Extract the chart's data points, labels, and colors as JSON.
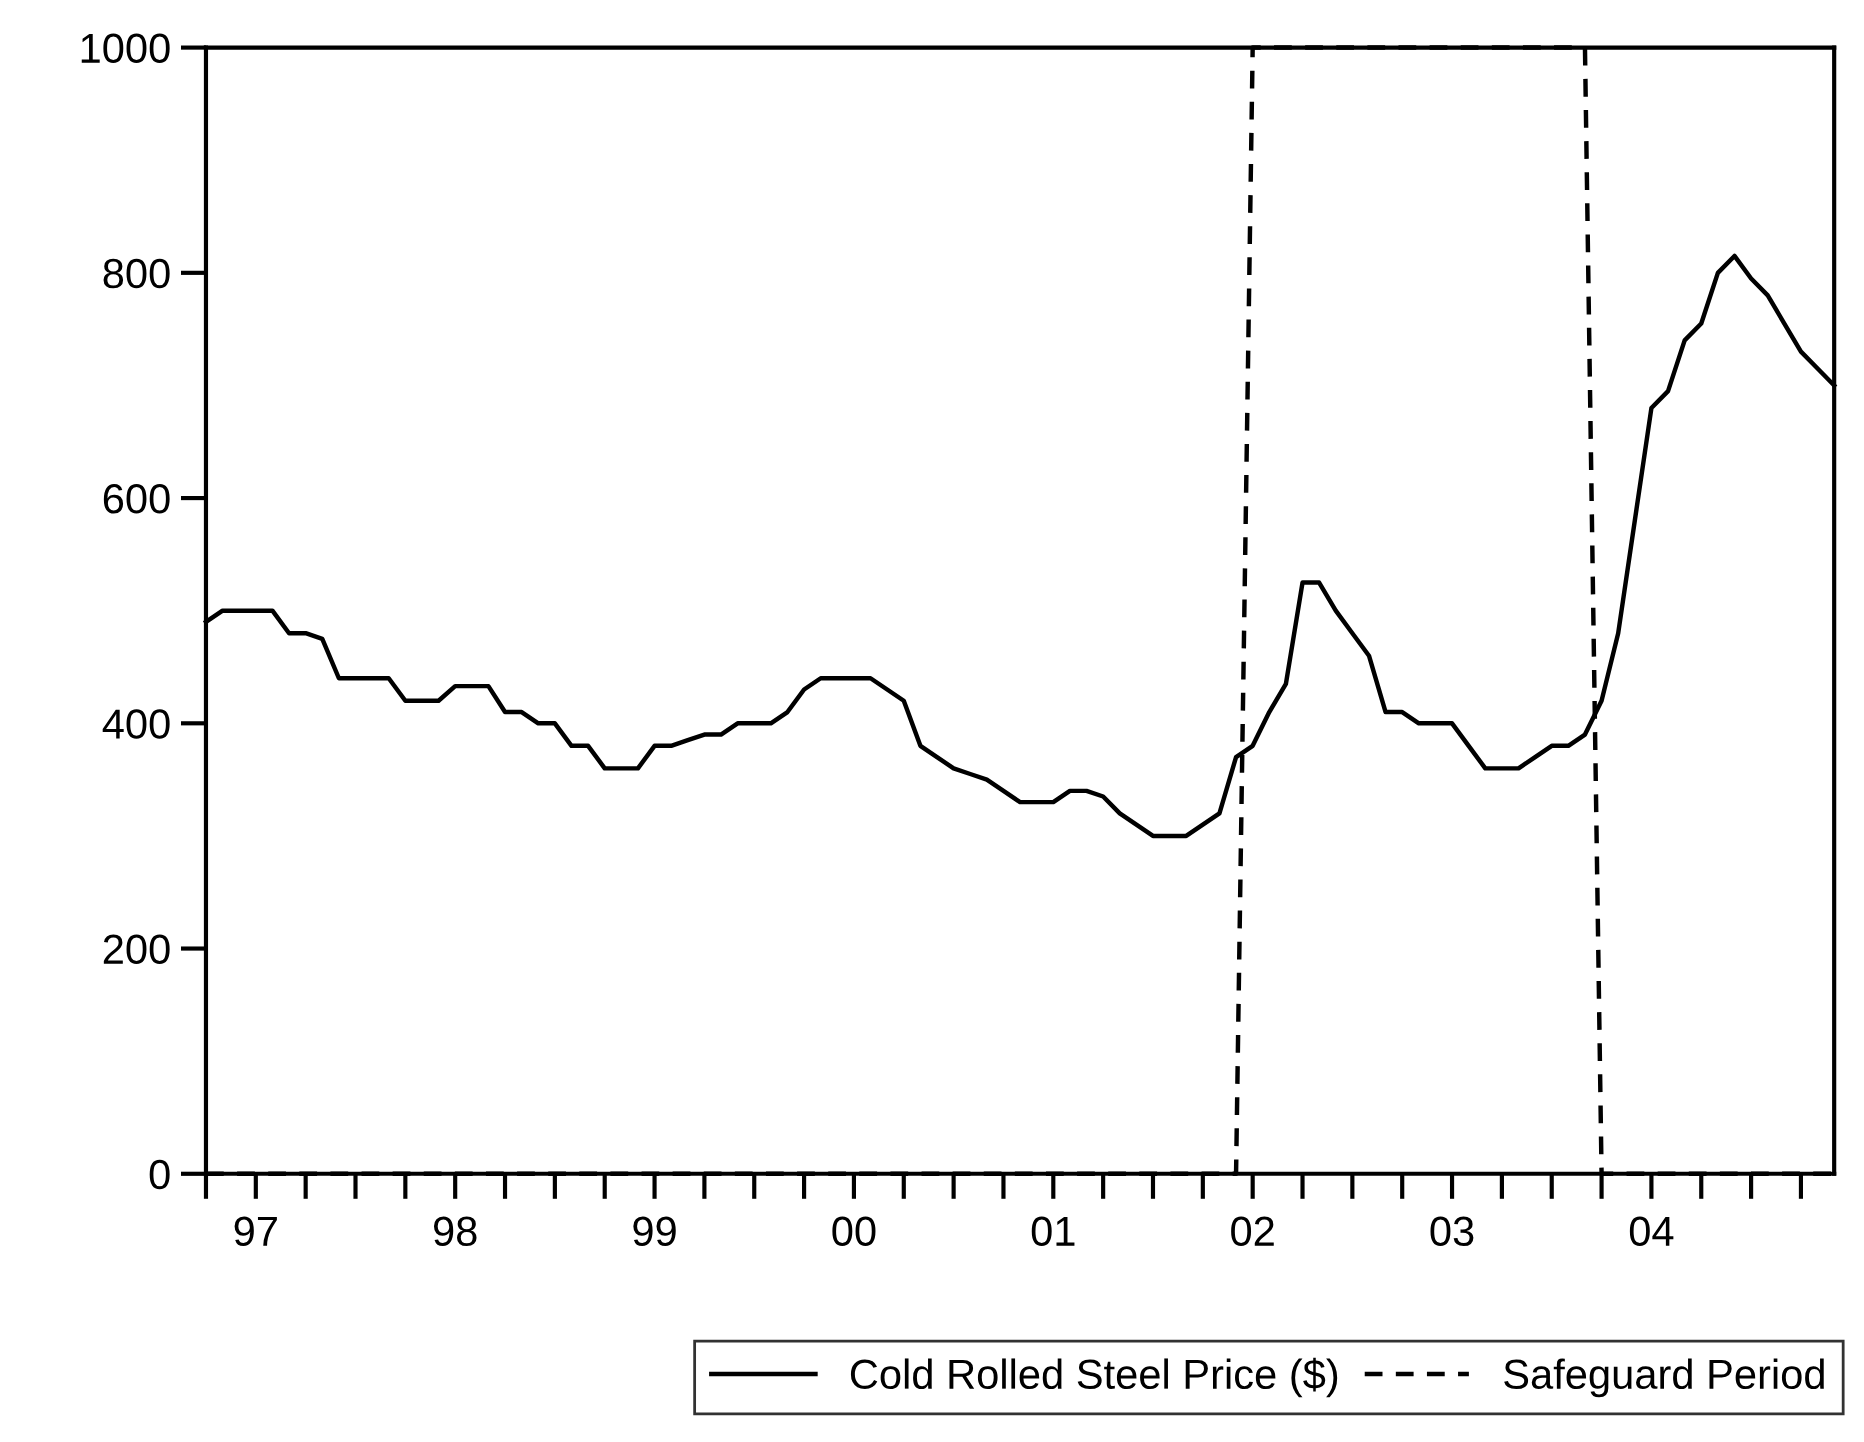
{
  "chart_data": {
    "type": "line",
    "x": [
      "1996-10",
      "1996-11",
      "1996-12",
      "1997-01",
      "1997-02",
      "1997-03",
      "1997-04",
      "1997-05",
      "1997-06",
      "1997-07",
      "1997-08",
      "1997-09",
      "1997-10",
      "1997-11",
      "1997-12",
      "1998-01",
      "1998-02",
      "1998-03",
      "1998-04",
      "1998-05",
      "1998-06",
      "1998-07",
      "1998-08",
      "1998-09",
      "1998-10",
      "1998-11",
      "1998-12",
      "1999-01",
      "1999-02",
      "1999-03",
      "1999-04",
      "1999-05",
      "1999-06",
      "1999-07",
      "1999-08",
      "1999-09",
      "1999-10",
      "1999-11",
      "1999-12",
      "2000-01",
      "2000-02",
      "2000-03",
      "2000-04",
      "2000-05",
      "2000-06",
      "2000-07",
      "2000-08",
      "2000-09",
      "2000-10",
      "2000-11",
      "2000-12",
      "2001-01",
      "2001-02",
      "2001-03",
      "2001-04",
      "2001-05",
      "2001-06",
      "2001-07",
      "2001-08",
      "2001-09",
      "2001-10",
      "2001-11",
      "2001-12",
      "2002-01",
      "2002-02",
      "2002-03",
      "2002-04",
      "2002-05",
      "2002-06",
      "2002-07",
      "2002-08",
      "2002-09",
      "2002-10",
      "2002-11",
      "2002-12",
      "2003-01",
      "2003-02",
      "2003-03",
      "2003-04",
      "2003-05",
      "2003-06",
      "2003-07",
      "2003-08",
      "2003-09",
      "2003-10",
      "2003-11",
      "2003-12",
      "2004-01",
      "2004-02",
      "2004-03",
      "2004-04",
      "2004-05",
      "2004-06",
      "2004-07",
      "2004-08",
      "2004-09",
      "2004-10",
      "2004-11",
      "2004-12"
    ],
    "series": [
      {
        "name": "Cold Rolled Steel Price ($)",
        "color": "#000000",
        "line_style": "solid",
        "values": [
          490,
          500,
          500,
          500,
          500,
          480,
          480,
          475,
          440,
          440,
          440,
          440,
          420,
          420,
          420,
          433,
          433,
          433,
          410,
          410,
          400,
          400,
          380,
          380,
          360,
          360,
          360,
          380,
          380,
          385,
          390,
          390,
          400,
          400,
          400,
          410,
          430,
          440,
          440,
          440,
          440,
          430,
          420,
          380,
          370,
          360,
          355,
          350,
          340,
          330,
          330,
          330,
          340,
          340,
          335,
          320,
          310,
          300,
          300,
          300,
          310,
          320,
          370,
          380,
          410,
          435,
          525,
          525,
          500,
          480,
          460,
          410,
          410,
          400,
          400,
          400,
          380,
          360,
          360,
          360,
          370,
          380,
          380,
          390,
          420,
          480,
          580,
          680,
          695,
          740,
          755,
          800,
          815,
          795,
          780,
          755,
          730,
          715,
          700
        ]
      },
      {
        "name": "Safeguard Period",
        "color": "#000000",
        "line_style": "dashed",
        "values": [
          0,
          0,
          0,
          0,
          0,
          0,
          0,
          0,
          0,
          0,
          0,
          0,
          0,
          0,
          0,
          0,
          0,
          0,
          0,
          0,
          0,
          0,
          0,
          0,
          0,
          0,
          0,
          0,
          0,
          0,
          0,
          0,
          0,
          0,
          0,
          0,
          0,
          0,
          0,
          0,
          0,
          0,
          0,
          0,
          0,
          0,
          0,
          0,
          0,
          0,
          0,
          0,
          0,
          0,
          0,
          0,
          0,
          0,
          0,
          0,
          0,
          0,
          0,
          1000,
          1000,
          1000,
          1000,
          1000,
          1000,
          1000,
          1000,
          1000,
          1000,
          1000,
          1000,
          1000,
          1000,
          1000,
          1000,
          1000,
          1000,
          1000,
          1000,
          1000,
          0,
          0,
          0,
          0,
          0,
          0,
          0,
          0,
          0,
          0,
          0,
          0,
          0,
          0,
          0
        ]
      }
    ],
    "xlim": [
      "1996-10",
      "2004-12"
    ],
    "xticks": [
      {
        "value": "1996-10",
        "label": null
      },
      {
        "value": "1997-01",
        "label": "97"
      },
      {
        "value": "1997-04",
        "label": null
      },
      {
        "value": "1997-07",
        "label": null
      },
      {
        "value": "1997-10",
        "label": null
      },
      {
        "value": "1998-01",
        "label": "98"
      },
      {
        "value": "1998-04",
        "label": null
      },
      {
        "value": "1998-07",
        "label": null
      },
      {
        "value": "1998-10",
        "label": null
      },
      {
        "value": "1999-01",
        "label": "99"
      },
      {
        "value": "1999-04",
        "label": null
      },
      {
        "value": "1999-07",
        "label": null
      },
      {
        "value": "1999-10",
        "label": null
      },
      {
        "value": "2000-01",
        "label": "00"
      },
      {
        "value": "2000-04",
        "label": null
      },
      {
        "value": "2000-07",
        "label": null
      },
      {
        "value": "2000-10",
        "label": null
      },
      {
        "value": "2001-01",
        "label": "01"
      },
      {
        "value": "2001-04",
        "label": null
      },
      {
        "value": "2001-07",
        "label": null
      },
      {
        "value": "2001-10",
        "label": null
      },
      {
        "value": "2002-01",
        "label": "02"
      },
      {
        "value": "2002-04",
        "label": null
      },
      {
        "value": "2002-07",
        "label": null
      },
      {
        "value": "2002-10",
        "label": null
      },
      {
        "value": "2003-01",
        "label": "03"
      },
      {
        "value": "2003-04",
        "label": null
      },
      {
        "value": "2003-07",
        "label": null
      },
      {
        "value": "2003-10",
        "label": null
      },
      {
        "value": "2004-01",
        "label": "04"
      },
      {
        "value": "2004-04",
        "label": null
      },
      {
        "value": "2004-07",
        "label": null
      },
      {
        "value": "2004-10",
        "label": null
      }
    ],
    "ylim": [
      0,
      1000
    ],
    "yticks": [
      0,
      200,
      400,
      600,
      800,
      1000
    ],
    "grid": false,
    "legend": "bottom",
    "marker": "none"
  }
}
